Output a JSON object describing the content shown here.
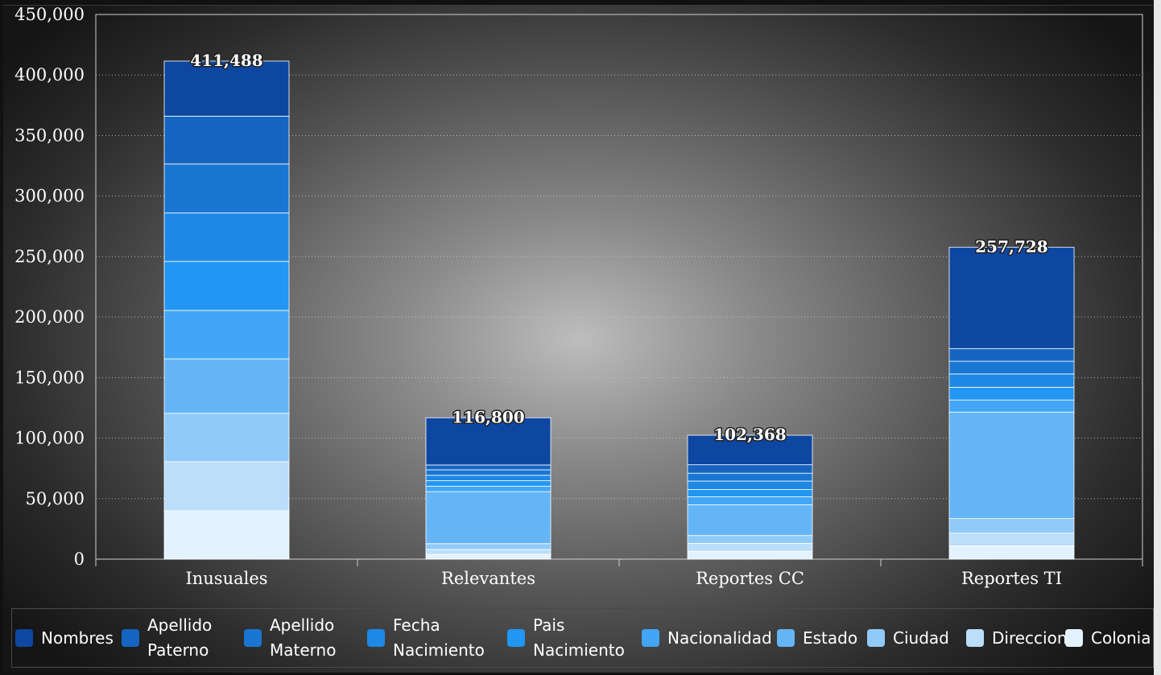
{
  "chart_data": {
    "type": "bar",
    "stacked": true,
    "categories": [
      "Inusuales",
      "Relevantes",
      "Reportes CC",
      "Reportes TI"
    ],
    "totals": [
      "411,488",
      "116,800",
      "102,368",
      "257,728"
    ],
    "ylim": [
      0,
      450000
    ],
    "yticks": [
      "0",
      "50,000",
      "100,000",
      "150,000",
      "200,000",
      "250,000",
      "300,000",
      "350,000",
      "400,000",
      "450,000"
    ],
    "grid": true,
    "legend_position": "bottom",
    "series": [
      {
        "name": "Colonia",
        "color": "#e3f2fd",
        "values": [
          40000,
          4000,
          6500,
          11000
        ]
      },
      {
        "name": "Direccion",
        "color": "#bbdefb",
        "values": [
          40500,
          4000,
          6500,
          10500
        ]
      },
      {
        "name": "Ciudad",
        "color": "#90caf9",
        "values": [
          40000,
          4800,
          6500,
          12000
        ]
      },
      {
        "name": "Estado",
        "color": "#64b5f6",
        "values": [
          45000,
          43000,
          25500,
          88000
        ]
      },
      {
        "name": "Nacionalidad",
        "color": "#42a5f5",
        "values": [
          40000,
          4500,
          6500,
          10000
        ]
      },
      {
        "name": "Pais Nacimiento",
        "color": "#2196f3",
        "values": [
          40500,
          4500,
          6000,
          10500
        ]
      },
      {
        "name": "Fecha Nacimiento",
        "color": "#1e88e5",
        "values": [
          40000,
          4500,
          7000,
          11000
        ]
      },
      {
        "name": "Apellido Materno",
        "color": "#1976d2",
        "values": [
          40500,
          4500,
          6500,
          10500
        ]
      },
      {
        "name": "Apellido Paterno",
        "color": "#1565c0",
        "values": [
          39500,
          4000,
          7000,
          10500
        ]
      },
      {
        "name": "Nombres",
        "color": "#0d47a1",
        "values": [
          45488,
          39000,
          24368,
          83728
        ]
      }
    ]
  },
  "legend": [
    {
      "lines": [
        "Nombres"
      ],
      "color": "#0d47a1",
      "icon": "legend-swatch"
    },
    {
      "lines": [
        "Apellido",
        "Paterno"
      ],
      "color": "#1565c0",
      "icon": "legend-swatch"
    },
    {
      "lines": [
        "Apellido",
        "Materno"
      ],
      "color": "#1976d2",
      "icon": "legend-swatch"
    },
    {
      "lines": [
        "Fecha",
        "Nacimiento"
      ],
      "color": "#1e88e5",
      "icon": "legend-swatch"
    },
    {
      "lines": [
        "Pais",
        "Nacimiento"
      ],
      "color": "#2196f3",
      "icon": "legend-swatch"
    },
    {
      "lines": [
        "Nacionalidad"
      ],
      "color": "#42a5f5",
      "icon": "legend-swatch"
    },
    {
      "lines": [
        "Estado"
      ],
      "color": "#64b5f6",
      "icon": "legend-swatch"
    },
    {
      "lines": [
        "Ciudad"
      ],
      "color": "#90caf9",
      "icon": "legend-swatch"
    },
    {
      "lines": [
        "Direccion"
      ],
      "color": "#bbdefb",
      "icon": "legend-swatch"
    },
    {
      "lines": [
        "Colonia"
      ],
      "color": "#e3f2fd",
      "icon": "legend-swatch"
    }
  ]
}
